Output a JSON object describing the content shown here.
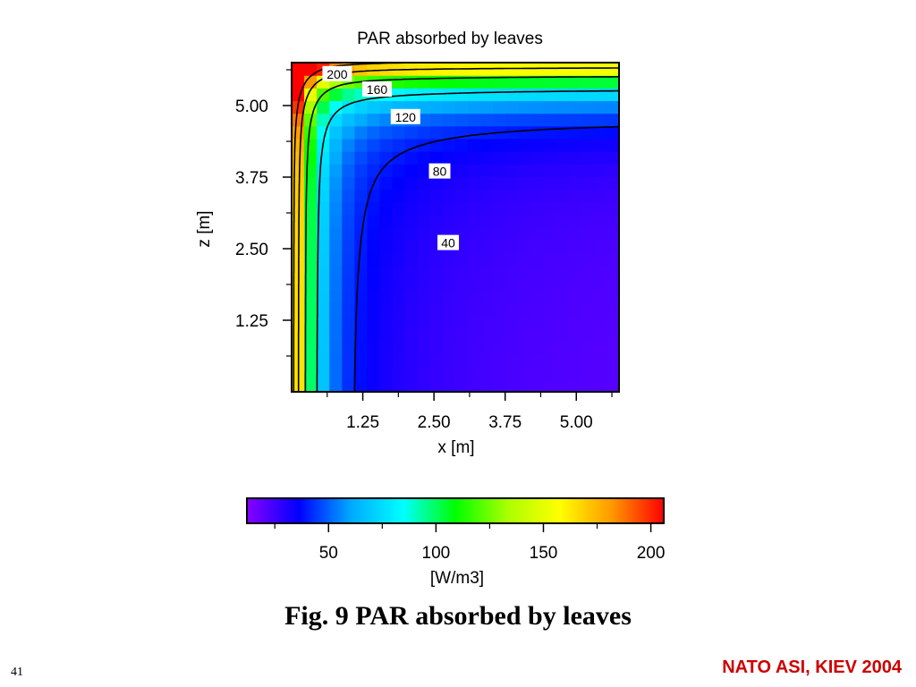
{
  "slide": {
    "caption": "Fig. 9  PAR absorbed by leaves",
    "page_number": "41",
    "footer": "NATO ASI, KIEV 2004"
  },
  "chart_data": {
    "type": "heatmap",
    "title": "PAR absorbed by leaves",
    "xlabel": "x [m]",
    "ylabel": "z [m]",
    "xlim": [
      0,
      5.75
    ],
    "ylim": [
      0,
      5.75
    ],
    "x_ticks": [
      1.25,
      2.5,
      3.75,
      5.0
    ],
    "x_tick_labels": [
      "1.25",
      "2.50",
      "3.75",
      "5.00"
    ],
    "y_ticks": [
      1.25,
      2.5,
      3.75,
      5.0
    ],
    "y_tick_labels": [
      "1.25",
      "2.50",
      "3.75",
      "5.00"
    ],
    "grid": false,
    "contours": [
      {
        "level": 200,
        "label": "200",
        "label_x": 0.8,
        "label_y": 5.55
      },
      {
        "level": 160,
        "label": "160",
        "label_x": 1.5,
        "label_y": 5.28
      },
      {
        "level": 120,
        "label": "120",
        "label_x": 2.0,
        "label_y": 4.8
      },
      {
        "level": 80,
        "label": "80",
        "label_x": 2.6,
        "label_y": 3.85
      },
      {
        "level": 40,
        "label": "40",
        "label_x": 2.75,
        "label_y": 2.6
      }
    ],
    "colorbar": {
      "label": "[W/m3]",
      "range": [
        12,
        206
      ],
      "ticks": [
        50,
        100,
        150,
        200
      ],
      "tick_labels": [
        "50",
        "100",
        "150",
        "200"
      ],
      "colormap": [
        "#8800ff",
        "#0000ff",
        "#00aaff",
        "#00ffff",
        "#00ff00",
        "#aaff00",
        "#ffff00",
        "#ff9900",
        "#ff0000"
      ]
    }
  }
}
